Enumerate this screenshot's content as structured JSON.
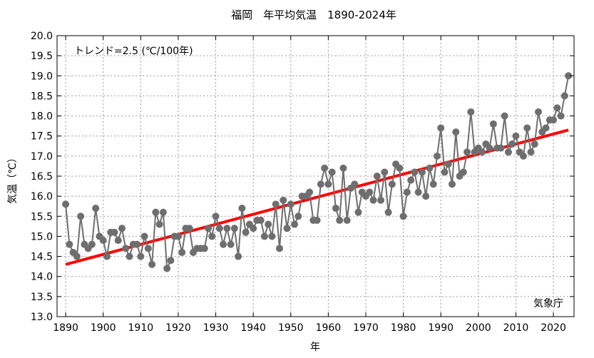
{
  "chart_data": {
    "type": "line",
    "title": "福岡　年平均気温　1890-2024年",
    "xlabel": "年",
    "ylabel": "気温（℃）",
    "annotation": "トレンド=2.5 (℃/100年)",
    "source": "気象庁",
    "xlim": [
      1887.7,
      2025.5
    ],
    "ylim": [
      13.0,
      20.0
    ],
    "grid": true,
    "x_ticks": [
      1890,
      1900,
      1910,
      1920,
      1930,
      1940,
      1950,
      1960,
      1970,
      1980,
      1990,
      2000,
      2010,
      2020
    ],
    "y_ticks": [
      13.0,
      13.5,
      14.0,
      14.5,
      15.0,
      15.5,
      16.0,
      16.5,
      17.0,
      17.5,
      18.0,
      18.5,
      19.0,
      19.5,
      20.0
    ],
    "x_start": 1890,
    "series": [
      {
        "name": "年平均気温",
        "color": "#6e6e6e",
        "values": [
          15.8,
          14.8,
          14.6,
          14.5,
          15.5,
          14.8,
          14.7,
          14.8,
          15.7,
          15.0,
          14.9,
          14.5,
          15.1,
          15.1,
          14.9,
          15.2,
          14.7,
          14.5,
          14.8,
          14.8,
          14.5,
          15.0,
          14.7,
          14.3,
          15.6,
          15.3,
          15.6,
          14.2,
          14.4,
          15.0,
          15.0,
          14.6,
          15.2,
          15.2,
          14.6,
          14.7,
          14.7,
          14.7,
          15.2,
          15.0,
          15.5,
          15.2,
          14.8,
          15.2,
          14.8,
          15.2,
          14.5,
          15.7,
          15.1,
          15.3,
          15.2,
          15.4,
          15.4,
          15.0,
          15.3,
          15.0,
          15.8,
          14.7,
          15.9,
          15.2,
          15.8,
          15.3,
          15.5,
          16.0,
          16.0,
          16.1,
          15.4,
          15.4,
          16.3,
          16.7,
          16.3,
          16.6,
          15.7,
          15.4,
          16.7,
          15.4,
          16.2,
          16.3,
          15.6,
          16.1,
          16.0,
          16.1,
          15.9,
          16.5,
          15.9,
          16.6,
          15.6,
          16.3,
          16.8,
          16.7,
          15.5,
          16.1,
          16.4,
          16.6,
          16.1,
          16.6,
          16.0,
          16.7,
          16.3,
          17.0,
          17.7,
          16.6,
          16.8,
          16.3,
          17.6,
          16.5,
          16.6,
          17.1,
          18.1,
          17.1,
          17.2,
          17.1,
          17.3,
          17.2,
          17.8,
          17.2,
          17.2,
          18.0,
          17.1,
          17.3,
          17.5,
          17.1,
          17.0,
          17.7,
          17.1,
          17.3,
          18.1,
          17.6,
          17.7,
          17.9,
          17.9,
          18.2,
          18.0,
          18.5,
          19.0
        ]
      }
    ],
    "trend": {
      "name": "トレンド",
      "color": "#ff0000",
      "x": [
        1890,
        2024
      ],
      "y": [
        14.3,
        17.65
      ]
    }
  }
}
